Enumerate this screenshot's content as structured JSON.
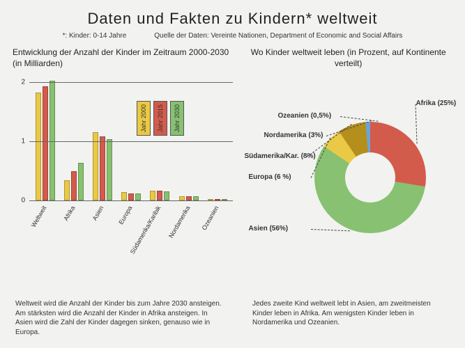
{
  "title": "Daten und Fakten zu Kindern* weltweit",
  "footnote": "*: Kinder: 0-14 Jahre",
  "source": "Quelle der Daten: Vereinte Nationen, Department of Economic and Social Affairs",
  "bar_chart": {
    "type": "bar",
    "title": "Entwicklung der Anzahl der Kinder im Zeitraum 2000-2030 (in Milliarden)",
    "categories": [
      "Weltweit",
      "Afrika",
      "Asien",
      "Europa",
      "Südamerika/Karibik",
      "Nordamerika",
      "Ozeanien"
    ],
    "series": [
      {
        "label": "Jahr 2000",
        "color": "#e9c945",
        "values": [
          1.82,
          0.35,
          1.15,
          0.14,
          0.17,
          0.07,
          0.01
        ]
      },
      {
        "label": "Jahr 2015",
        "color": "#d35b4c",
        "values": [
          1.92,
          0.5,
          1.08,
          0.12,
          0.17,
          0.07,
          0.01
        ]
      },
      {
        "label": "Jahr 2030",
        "color": "#87c171",
        "values": [
          2.02,
          0.64,
          1.03,
          0.12,
          0.16,
          0.07,
          0.01
        ]
      }
    ],
    "ylim": [
      0,
      2.05
    ],
    "yticks": [
      0,
      1,
      2
    ],
    "grid_color": "#666666",
    "background_color": "#f2f2f0",
    "bar_border": "rgba(0,0,0,0.25)",
    "caption": "Weltweit wird die Anzahl der Kinder bis zum Jahre 2030 ansteigen. Am stärksten wird die Anzahl der Kinder in Afrika ansteigen. In Asien wird die Zahl der Kinder dagegen sinken, genauso wie in Europa."
  },
  "donut_chart": {
    "type": "pie",
    "title": "Wo Kinder weltweit leben (in Prozent, auf Kontinente verteilt)",
    "inner_radius_pct": 45,
    "background_color": "#f2f2f0",
    "slices": [
      {
        "label": "Afrika (25%)",
        "value": 25,
        "color": "#d35b4c"
      },
      {
        "label": "Asien (56%)",
        "value": 56,
        "color": "#87c171"
      },
      {
        "label": "Europa (6 %)",
        "value": 6,
        "color": "#e9c945"
      },
      {
        "label": "Südamerika/Kar. (8%)",
        "value": 8,
        "color": "#b58f1c"
      },
      {
        "label": "Nordamerika (3%)",
        "value": 3,
        "color": "#6aa4d8"
      },
      {
        "label": "Ozeanien (0,5%)",
        "value": 0.5,
        "color": "#4a4a4a"
      }
    ],
    "caption": "Jedes zweite Kind weltweit lebt in Asien, am zweitmeisten Kinder leben in Afrika. Am wenigsten Kinder leben in Nordamerika und Ozeanien."
  },
  "colors": {
    "page_bg": "#f2f2f0",
    "text": "#333333",
    "title": "#222222"
  }
}
